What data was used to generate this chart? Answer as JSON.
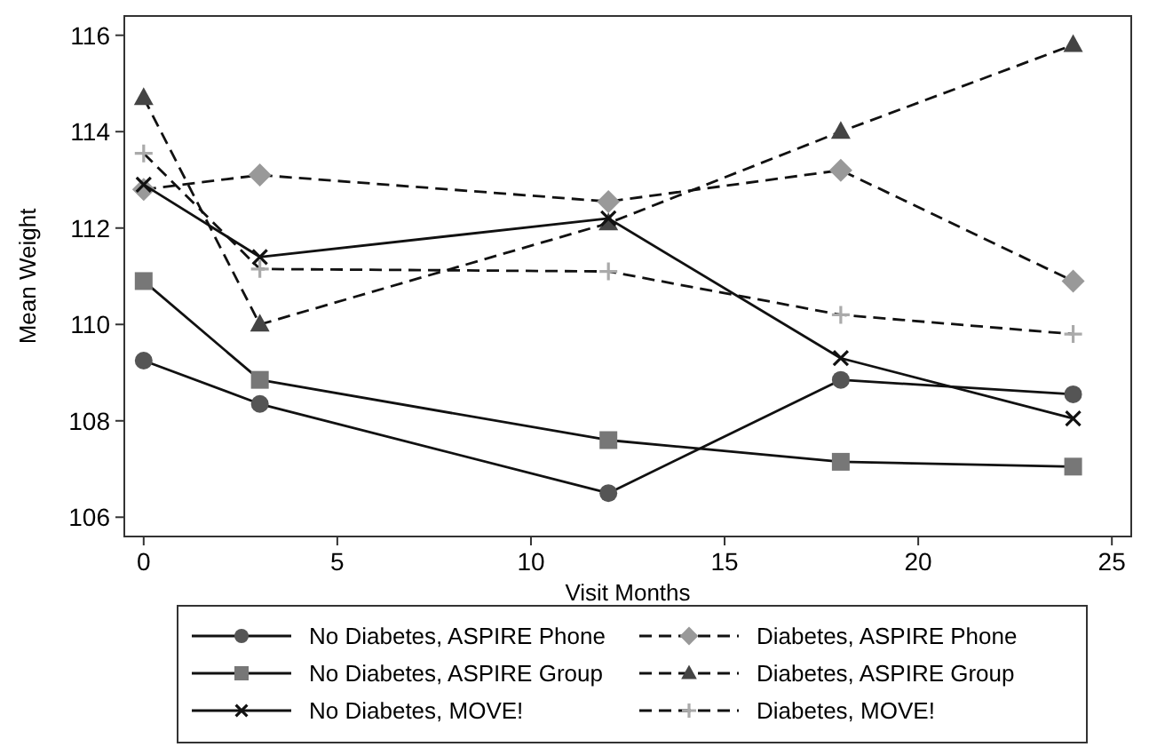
{
  "chart_data": {
    "type": "line",
    "xlabel": "Visit Months",
    "ylabel": "Mean Weight",
    "x": [
      0,
      3,
      12,
      18,
      24
    ],
    "xlim": [
      -0.5,
      25.5
    ],
    "ylim": [
      105.6,
      116.4
    ],
    "xticks": [
      0,
      5,
      10,
      15,
      20,
      25
    ],
    "yticks": [
      106,
      108,
      110,
      112,
      114,
      116
    ],
    "grid": false,
    "legend": "bottom",
    "series": [
      {
        "name": "No Diabetes, ASPIRE Phone",
        "color": "#555555",
        "marker": "circle",
        "line_style": "solid",
        "values": [
          109.25,
          108.35,
          106.5,
          108.85,
          108.55
        ]
      },
      {
        "name": "Diabetes, ASPIRE Phone",
        "color": "#999999",
        "marker": "diamond",
        "line_style": "dashed",
        "values": [
          112.8,
          113.1,
          112.55,
          113.2,
          110.9
        ]
      },
      {
        "name": "No Diabetes, ASPIRE Group",
        "color": "#777777",
        "marker": "square",
        "line_style": "solid",
        "values": [
          110.9,
          108.85,
          107.6,
          107.15,
          107.05
        ]
      },
      {
        "name": "Diabetes, ASPIRE Group",
        "color": "#444444",
        "marker": "triangle",
        "line_style": "dashed",
        "values": [
          114.7,
          110.0,
          112.1,
          114.0,
          115.8
        ]
      },
      {
        "name": "No Diabetes, MOVE!",
        "color": "#111111",
        "marker": "cross",
        "line_style": "solid",
        "values": [
          112.9,
          111.4,
          112.2,
          109.3,
          108.05
        ]
      },
      {
        "name": "Diabetes, MOVE!",
        "color": "#aaaaaa",
        "marker": "plus",
        "line_style": "dashed",
        "values": [
          113.55,
          111.15,
          111.1,
          110.2,
          109.8
        ]
      }
    ]
  }
}
